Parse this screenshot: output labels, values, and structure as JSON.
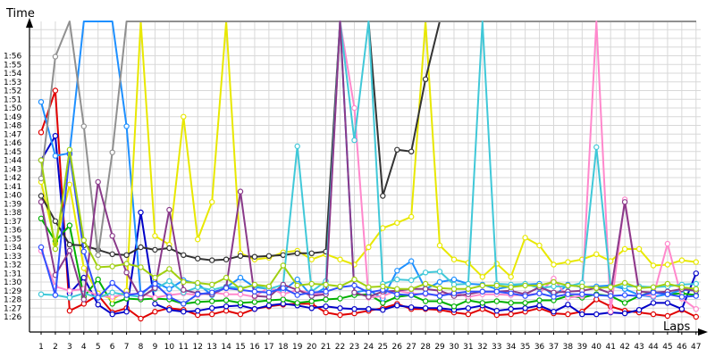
{
  "chart_data": {
    "type": "line",
    "title": "",
    "xlabel": "Laps",
    "ylabel": "Time",
    "x": [
      1,
      2,
      3,
      4,
      5,
      6,
      7,
      8,
      9,
      10,
      11,
      12,
      13,
      14,
      15,
      16,
      17,
      18,
      19,
      20,
      21,
      22,
      23,
      24,
      25,
      26,
      27,
      28,
      29,
      30,
      31,
      32,
      33,
      34,
      35,
      36,
      37,
      38,
      39,
      40,
      41,
      42,
      43,
      44,
      45,
      46,
      47
    ],
    "x_ticks": [
      "1",
      "2",
      "3",
      "4",
      "5",
      "6",
      "7",
      "8",
      "9",
      "10",
      "11",
      "12",
      "13",
      "14",
      "15",
      "16",
      "17",
      "18",
      "19",
      "20",
      "21",
      "22",
      "23",
      "24",
      "25",
      "26",
      "27",
      "28",
      "29",
      "30",
      "31",
      "32",
      "33",
      "34",
      "35",
      "36",
      "37",
      "38",
      "39",
      "40",
      "41",
      "42",
      "43",
      "44",
      "45",
      "46",
      "47"
    ],
    "y_ticks": [
      {
        "v": 86,
        "label": "1:26"
      },
      {
        "v": 87,
        "label": "1:27"
      },
      {
        "v": 88,
        "label": "1:28"
      },
      {
        "v": 89,
        "label": "1:29"
      },
      {
        "v": 90,
        "label": "1:30"
      },
      {
        "v": 91,
        "label": "1:31"
      },
      {
        "v": 92,
        "label": "1:32"
      },
      {
        "v": 93,
        "label": "1:33"
      },
      {
        "v": 94,
        "label": "1:34"
      },
      {
        "v": 95,
        "label": "1:35"
      },
      {
        "v": 96,
        "label": "1:36"
      },
      {
        "v": 97,
        "label": "1:37"
      },
      {
        "v": 98,
        "label": "1:38"
      },
      {
        "v": 99,
        "label": "1:39"
      },
      {
        "v": 100,
        "label": "1:40"
      },
      {
        "v": 101,
        "label": "1:41"
      },
      {
        "v": 102,
        "label": "1:42"
      },
      {
        "v": 103,
        "label": "1:43"
      },
      {
        "v": 104,
        "label": "1:44"
      },
      {
        "v": 105,
        "label": "1:45"
      },
      {
        "v": 106,
        "label": "1:46"
      },
      {
        "v": 107,
        "label": "1:47"
      },
      {
        "v": 108,
        "label": "1:48"
      },
      {
        "v": 109,
        "label": "1:49"
      },
      {
        "v": 110,
        "label": "1:50"
      },
      {
        "v": 111,
        "label": "1:51"
      },
      {
        "v": 112,
        "label": "1:52"
      },
      {
        "v": 113,
        "label": "1:53"
      },
      {
        "v": 114,
        "label": "1:54"
      },
      {
        "v": 115,
        "label": "1:55"
      },
      {
        "v": 116,
        "label": "1:56"
      }
    ],
    "ylim": [
      85,
      120
    ],
    "xlim": [
      0,
      47.5
    ],
    "grid": true,
    "series": [
      {
        "color": "#e00000",
        "values": [
          107.2,
          112,
          86.7,
          87.5,
          88.5,
          86.5,
          87,
          85.8,
          86.6,
          87,
          86.8,
          86.2,
          86.3,
          86.7,
          86.3,
          86.9,
          87.2,
          87.4,
          87.5,
          87.5,
          86.5,
          86.2,
          86.4,
          86.7,
          87,
          87.5,
          86.9,
          86.9,
          86.8,
          86.5,
          86.3,
          86.9,
          86.2,
          86.3,
          86.6,
          87,
          86.4,
          86.3,
          86.6,
          88,
          87.2,
          86.7,
          86.5,
          86.3,
          86.1,
          86.8,
          86.0
        ]
      },
      {
        "color": "#0000c8",
        "values": [
          104,
          106.8,
          88.7,
          90.5,
          87.4,
          86.3,
          86.6,
          98,
          87.5,
          86.8,
          86.6,
          86.7,
          87,
          87.2,
          87.3,
          86.9,
          87.3,
          87.5,
          87.3,
          87,
          87.2,
          87,
          86.9,
          86.9,
          86.8,
          87.3,
          87.1,
          87,
          87,
          86.8,
          87,
          87.3,
          86.7,
          86.9,
          87,
          87.3,
          86.6,
          87.4,
          86.3,
          86.3,
          86.5,
          86.4,
          86.8,
          87.6,
          87.6,
          86.9,
          91.0
        ]
      },
      {
        "color": "#00b000",
        "values": [
          97.3,
          94.7,
          96.5,
          88.3,
          90.3,
          87.5,
          88.1,
          88,
          88.1,
          88,
          87.5,
          87.7,
          87.8,
          87.9,
          87.6,
          87.7,
          87.9,
          88,
          87.6,
          87.8,
          88,
          88.1,
          88.5,
          88.6,
          87.6,
          88.3,
          88.5,
          87.8,
          87.8,
          87.2,
          87.9,
          87.6,
          87.8,
          87.6,
          87.6,
          87.9,
          87.9,
          88.4,
          88.2,
          88.6,
          88.4,
          87.6,
          88.4,
          88.9,
          88.6,
          88.7,
          88.5
        ]
      },
      {
        "color": "#1e90ff",
        "values": [
          110.7,
          104.5,
          104.8,
          120,
          120,
          120,
          107.9,
          88.5,
          90,
          89.2,
          90.2,
          89.8,
          88.5,
          89.4,
          90.5,
          89.4,
          89.2,
          89,
          90.3,
          88.4,
          89.4,
          120,
          88.8,
          89.1,
          88.1,
          91.3,
          92.4,
          89.2,
          90,
          90.3,
          89.8,
          89.7,
          89.2,
          89.5,
          89.7,
          89.8,
          88.4,
          89.7,
          89.4,
          89.5,
          89.6,
          89.2,
          88.5,
          88.3,
          88.6,
          89.1,
          89
        ]
      },
      {
        "color": "#e8e800",
        "values": [
          101.5,
          94.4,
          101.2,
          91.6,
          88.7,
          88,
          89,
          120,
          95.3,
          94.3,
          109,
          94.9,
          99.2,
          120,
          93.3,
          92.6,
          92.8,
          93.4,
          93.6,
          92.6,
          93.2,
          92.6,
          92,
          94,
          96.2,
          96.8,
          97.5,
          120,
          94.2,
          92.6,
          92.2,
          90.6,
          92.1,
          90.6,
          95.1,
          94.2,
          92,
          92.3,
          92.6,
          93.2,
          92.4,
          93.8,
          93.8,
          91.9,
          92,
          92.5,
          92.3
        ]
      },
      {
        "color": "#333333",
        "values": [
          99.9,
          97,
          94.3,
          94.2,
          93.7,
          93.2,
          93.1,
          94,
          93.7,
          93.9,
          93.1,
          92.7,
          92.5,
          92.6,
          93,
          92.9,
          93,
          93.1,
          93.3,
          93.3,
          93.5,
          120,
          120,
          120,
          99.9,
          105.2,
          105,
          113.3,
          120,
          120,
          120,
          120,
          120,
          120,
          120,
          120,
          120,
          120,
          120,
          120,
          120,
          120,
          120,
          120,
          120,
          120,
          120
        ]
      },
      {
        "color": "#909090",
        "values": [
          101.9,
          115.9,
          120,
          107.9,
          93.1,
          104.9,
          120,
          120,
          120,
          120,
          120,
          120,
          120,
          120,
          120,
          120,
          120,
          120,
          120,
          120,
          120,
          120,
          120,
          120,
          120,
          120,
          120,
          120,
          120,
          120,
          120,
          120,
          120,
          120,
          120,
          120,
          120,
          120,
          120,
          120,
          120,
          120,
          120,
          120,
          120,
          120,
          120
        ]
      },
      {
        "color": "#ff88cc",
        "values": [
          93.6,
          89.5,
          89,
          89.2,
          88.4,
          88.3,
          88.6,
          88.7,
          88.2,
          88.5,
          88.7,
          88.5,
          88.8,
          88.6,
          88.6,
          88.3,
          89.4,
          88.6,
          89.1,
          88.7,
          88.6,
          120,
          110,
          88.2,
          88.4,
          89,
          88.7,
          88.6,
          88.5,
          88.8,
          88.3,
          88.6,
          88.6,
          88.5,
          88.5,
          88.7,
          90.4,
          88.2,
          88.4,
          120,
          86.6,
          99.5,
          88.6,
          88.4,
          94.4,
          88.1,
          86.9
        ]
      },
      {
        "color": "#40c8d8",
        "values": [
          88.6,
          88.5,
          88.2,
          88.7,
          88.2,
          88.8,
          88.5,
          88.3,
          89.2,
          90.1,
          88.8,
          89.4,
          89.1,
          89.5,
          89.3,
          89.6,
          89.2,
          89.7,
          105.6,
          88.9,
          90.1,
          120,
          106.3,
          120,
          89.8,
          90.3,
          90.2,
          91.1,
          91.2,
          89.7,
          89.8,
          120,
          89.8,
          89.7,
          89.8,
          89.3,
          89.5,
          89.5,
          89.9,
          105.5,
          89.5,
          89.5,
          89.5,
          89.4,
          89.5,
          89.7,
          89.8
        ]
      },
      {
        "color": "#8a3a8a",
        "values": [
          99.2,
          90.8,
          93.6,
          88,
          101.5,
          95.3,
          91.1,
          88.2,
          89.3,
          98.3,
          89.1,
          88.7,
          88.6,
          89.4,
          100.4,
          88.4,
          88.3,
          89.7,
          89.1,
          88.4,
          88.6,
          120,
          88.8,
          88.3,
          88.9,
          89,
          89.2,
          89.2,
          89,
          88.4,
          88.6,
          88.9,
          88.9,
          89,
          88.6,
          89.4,
          88.8,
          88.9,
          89,
          89.3,
          88.7,
          99.2,
          88.9,
          88.8,
          88.9,
          89.2,
          89
        ]
      },
      {
        "color": "#3050ff",
        "values": [
          94,
          88.5,
          104.7,
          93.5,
          88.2,
          89.9,
          88.5,
          88.7,
          89.8,
          88.3,
          87.5,
          88.6,
          88.8,
          89.3,
          89.1,
          88.9,
          88.8,
          89.3,
          88.5,
          88.8,
          88.9,
          89.4,
          89.6,
          88.8,
          89.1,
          88.6,
          88.5,
          88.7,
          88.4,
          88.7,
          88.9,
          88.9,
          88.9,
          88.7,
          88.4,
          88.7,
          88.3,
          88.6,
          88.6,
          88.5,
          88.4,
          88.5,
          88.4,
          88.8,
          88.6,
          88.3,
          88.4
        ]
      },
      {
        "color": "#a0d010",
        "values": [
          104,
          93.8,
          105.2,
          94.8,
          91.7,
          91.8,
          92.1,
          91.7,
          90.5,
          91.5,
          90,
          89.9,
          89.7,
          90.5,
          89.2,
          89.7,
          89.5,
          91.9,
          89.6,
          89.8,
          89.7,
          89.5,
          90.3,
          89.4,
          89.5,
          89.2,
          89.2,
          89.8,
          89.3,
          89.2,
          89.2,
          89.6,
          89.6,
          89.4,
          89.6,
          89.6,
          90,
          89.6,
          89.5,
          89.3,
          89.4,
          89.9,
          89.3,
          89.4,
          89.8,
          89.4,
          89.2
        ]
      }
    ]
  }
}
